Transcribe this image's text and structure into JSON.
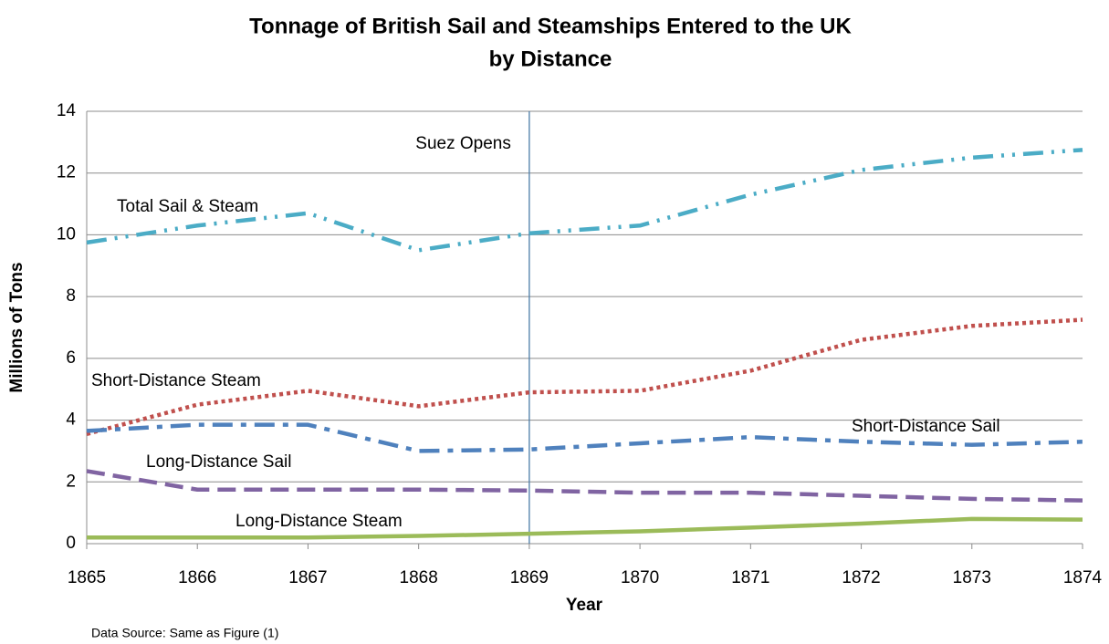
{
  "chart_data": {
    "type": "line",
    "title": [
      "Tonnage of British Sail and Steamships Entered to the UK",
      "by Distance"
    ],
    "x_label": "Year",
    "y_label": "Millions of Tons",
    "note": "Data Source: Same as Figure (1)",
    "annotations": [
      {
        "text": "Suez Opens",
        "x": 1869
      }
    ],
    "x": [
      1865,
      1866,
      1867,
      1868,
      1869,
      1870,
      1871,
      1872,
      1873,
      1874
    ],
    "xlim": [
      1865,
      1874
    ],
    "xticks": [
      1865,
      1866,
      1867,
      1868,
      1869,
      1870,
      1871,
      1872,
      1873,
      1874
    ],
    "ylim": [
      0,
      14
    ],
    "yticks": [
      0,
      2,
      4,
      6,
      8,
      10,
      12,
      14
    ],
    "grid": true,
    "series": [
      {
        "name": "Total Sail & Steam",
        "color": "#4bacc6",
        "values": [
          9.75,
          10.3,
          10.7,
          9.5,
          10.05,
          10.3,
          11.3,
          12.1,
          12.5,
          12.75
        ]
      },
      {
        "name": "Short-Distance Steam",
        "color": "#c0504d",
        "values": [
          3.55,
          4.5,
          4.95,
          4.45,
          4.9,
          4.95,
          5.6,
          6.6,
          7.05,
          7.25
        ]
      },
      {
        "name": "Short-Distance Sail",
        "color": "#4f81bd",
        "values": [
          3.65,
          3.85,
          3.85,
          3.0,
          3.05,
          3.25,
          3.45,
          3.3,
          3.2,
          3.3
        ]
      },
      {
        "name": "Long-Distance Sail",
        "color": "#8064a2",
        "values": [
          2.35,
          1.75,
          1.75,
          1.75,
          1.72,
          1.65,
          1.65,
          1.55,
          1.45,
          1.4
        ]
      },
      {
        "name": "Long-Distance Steam",
        "color": "#9bbb59",
        "values": [
          0.2,
          0.2,
          0.2,
          0.25,
          0.32,
          0.4,
          0.52,
          0.65,
          0.8,
          0.78
        ]
      }
    ]
  }
}
